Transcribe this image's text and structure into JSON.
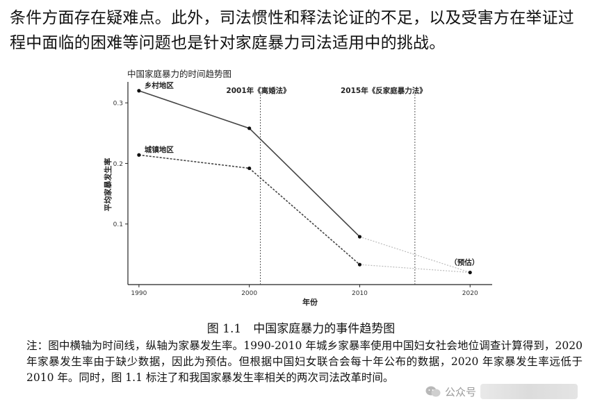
{
  "paragraph": {
    "line1": "条件方面存在疑难点。此外，司法惯性和释法论证的不足，以及受害方在举证过",
    "line2": "程中面临的困难等问题也是针对家庭暴力司法适用中的挑战。"
  },
  "chart_data": {
    "type": "line",
    "title": "中国家庭暴力的时间趋势图",
    "xlabel": "年份",
    "ylabel": "平均家暴发生率",
    "x_ticks": [
      "1990",
      "2000",
      "2010",
      "2020"
    ],
    "y_ticks": [
      "0.1",
      "0.2",
      "0.3"
    ],
    "xlim": [
      1989,
      2022
    ],
    "ylim": [
      0.0,
      0.33
    ],
    "series": [
      {
        "name": "乡村地区",
        "style": "solid",
        "x": [
          1990,
          2000,
          2010
        ],
        "y": [
          0.32,
          0.258,
          0.079
        ],
        "projection": {
          "x": [
            2010,
            2020
          ],
          "y": [
            0.079,
            0.02
          ]
        }
      },
      {
        "name": "城镇地区",
        "style": "dotted",
        "x": [
          1990,
          2000,
          2010
        ],
        "y": [
          0.214,
          0.192,
          0.033
        ],
        "projection": {
          "x": [
            2010,
            2020
          ],
          "y": [
            0.033,
            0.02
          ]
        }
      }
    ],
    "estimate_point": {
      "x": 2020,
      "y": 0.02,
      "label": "（预估）"
    },
    "events": [
      {
        "x": 2001,
        "label": "2001年《离婚法》"
      },
      {
        "x": 2015,
        "label": "2015年《反家庭暴力法》"
      }
    ]
  },
  "caption": "图 1.1　中国家庭暴力的事件趋势图",
  "note": "注：图中横轴为时间线，纵轴为家暴发生率。1990-2010 年城乡家暴率使用中国妇女社会地位调查计算得到，2020 年家暴发生率由于缺少数据，因此为预估。但根据中国妇女联合会每十年公布的数据，2020 年家暴发生率远低于 2010 年。同时，图 1.1 标注了和我国家暴发生率相关的两次司法改革时间。",
  "watermark": {
    "text": "公众号",
    "icon": "wechat-icon"
  }
}
